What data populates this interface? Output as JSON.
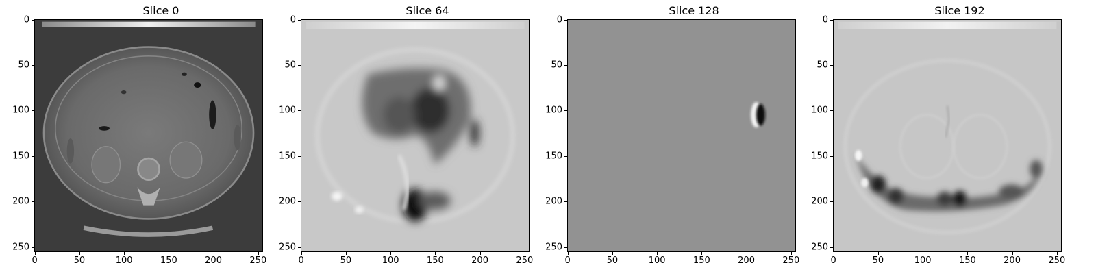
{
  "panels": [
    {
      "title": "Slice 0",
      "image": "ct-abdomen-axial",
      "xticks": [
        "0",
        "50",
        "100",
        "150",
        "200",
        "250"
      ],
      "yticks": [
        "0",
        "50",
        "100",
        "150",
        "200",
        "250"
      ]
    },
    {
      "title": "Slice 64",
      "image": "light-gray-feature-map-with-dark-blobs",
      "xticks": [
        "0",
        "50",
        "100",
        "150",
        "200",
        "250"
      ],
      "yticks": [
        "0",
        "50",
        "100",
        "150",
        "200",
        "250"
      ]
    },
    {
      "title": "Slice 128",
      "image": "uniform-gray-with-single-dipole-spot",
      "xticks": [
        "0",
        "50",
        "100",
        "150",
        "200",
        "250"
      ],
      "yticks": [
        "0",
        "50",
        "100",
        "150",
        "200",
        "250"
      ]
    },
    {
      "title": "Slice 192",
      "image": "light-gray-feature-map-with-dark-lower-band",
      "xticks": [
        "0",
        "50",
        "100",
        "150",
        "200",
        "250"
      ],
      "yticks": [
        "0",
        "50",
        "100",
        "150",
        "200",
        "250"
      ]
    }
  ],
  "axis_range": [
    0,
    256
  ],
  "colormap": "gray"
}
